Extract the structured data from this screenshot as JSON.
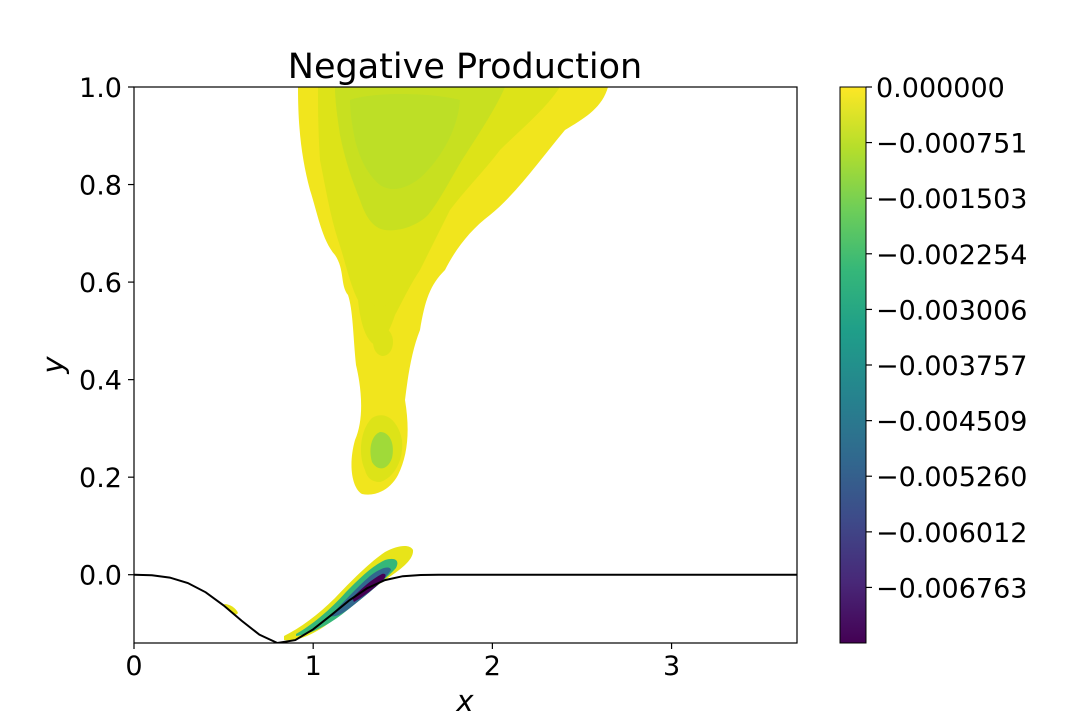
{
  "chart_data": {
    "type": "heatmap",
    "title": "Negative Production",
    "xlabel": "x",
    "ylabel": "y",
    "xlim": [
      0,
      3.7
    ],
    "ylim": [
      -0.14,
      1.0
    ],
    "xticks": [
      {
        "value": 0,
        "label": "0"
      },
      {
        "value": 1,
        "label": "1"
      },
      {
        "value": 2,
        "label": "2"
      },
      {
        "value": 3,
        "label": "3"
      }
    ],
    "yticks": [
      {
        "value": 0.0,
        "label": "0.0"
      },
      {
        "value": 0.2,
        "label": "0.2"
      },
      {
        "value": 0.4,
        "label": "0.4"
      },
      {
        "value": 0.6,
        "label": "0.6"
      },
      {
        "value": 0.8,
        "label": "0.8"
      },
      {
        "value": 1.0,
        "label": "1.0"
      }
    ],
    "colormap": "viridis",
    "colorbar": {
      "min": -0.007514,
      "max": 0.0,
      "ticks": [
        {
          "value": 0.0,
          "label": "0.000000"
        },
        {
          "value": -0.000751,
          "label": "−0.000751"
        },
        {
          "value": -0.001503,
          "label": "−0.001503"
        },
        {
          "value": -0.002254,
          "label": "−0.002254"
        },
        {
          "value": -0.003006,
          "label": "−0.003006"
        },
        {
          "value": -0.003757,
          "label": "−0.003757"
        },
        {
          "value": -0.004509,
          "label": "−0.004509"
        },
        {
          "value": -0.00526,
          "label": "−0.005260"
        },
        {
          "value": -0.006012,
          "label": "−0.006012"
        },
        {
          "value": -0.006763,
          "label": "−0.006763"
        }
      ]
    },
    "bump_profile": {
      "x": [
        0,
        0.1,
        0.2,
        0.3,
        0.4,
        0.5,
        0.6,
        0.7,
        0.8,
        0.9,
        1.0,
        1.1,
        1.2,
        1.3,
        1.4,
        1.5,
        1.6,
        1.7,
        2.0,
        3.0,
        3.7
      ],
      "y": [
        0,
        -0.001,
        -0.006,
        -0.017,
        -0.036,
        -0.063,
        -0.094,
        -0.123,
        -0.14,
        -0.134,
        -0.112,
        -0.083,
        -0.053,
        -0.028,
        -0.011,
        -0.003,
        -0.0005,
        0,
        0,
        0,
        0
      ]
    }
  }
}
